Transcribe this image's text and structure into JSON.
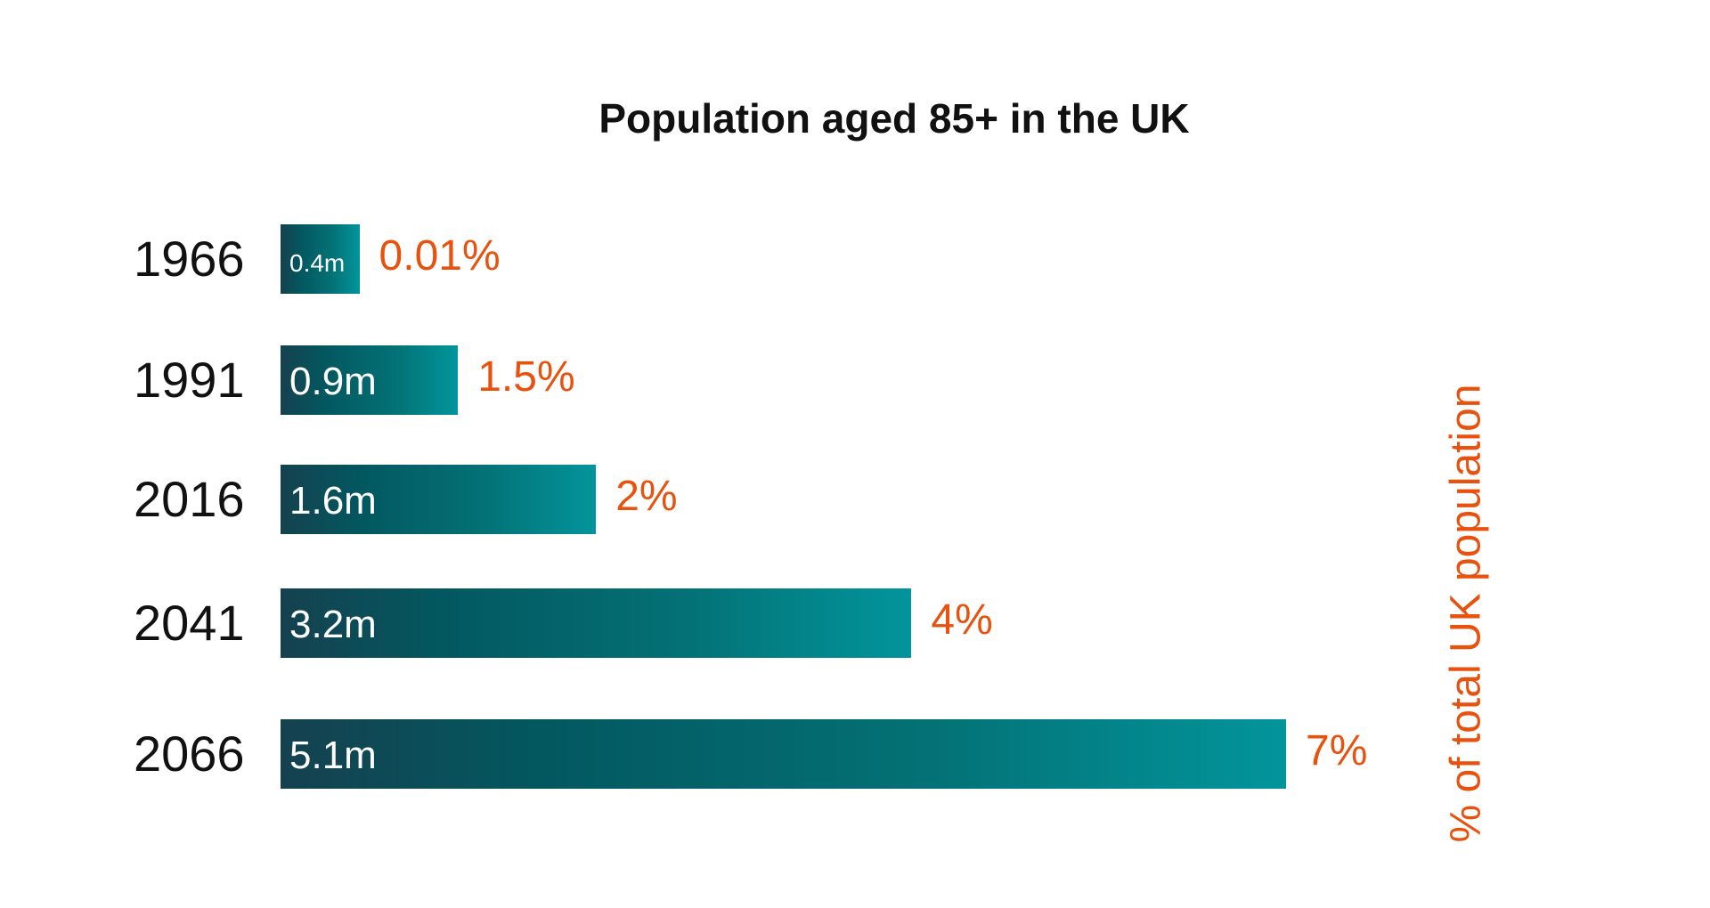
{
  "chart_data": {
    "type": "bar",
    "orientation": "horizontal",
    "title": "Population aged 85+ in the UK",
    "categories": [
      "1966",
      "1991",
      "2016",
      "2041",
      "2066"
    ],
    "values": [
      0.4,
      0.9,
      1.6,
      3.2,
      5.1
    ],
    "value_labels": [
      "0.4m",
      "0.9m",
      "1.6m",
      "3.2m",
      "5.1m"
    ],
    "percent_labels": [
      "0.01%",
      "1.5%",
      "2%",
      "4%",
      "7%"
    ],
    "secondary_label": "% of total UK population",
    "xlabel": "",
    "ylabel": "",
    "xlim": [
      0,
      5.1
    ],
    "grid": false,
    "colors": {
      "bar_start": "#15414f",
      "bar_end": "#02959b",
      "percent": "#e8520f"
    }
  }
}
